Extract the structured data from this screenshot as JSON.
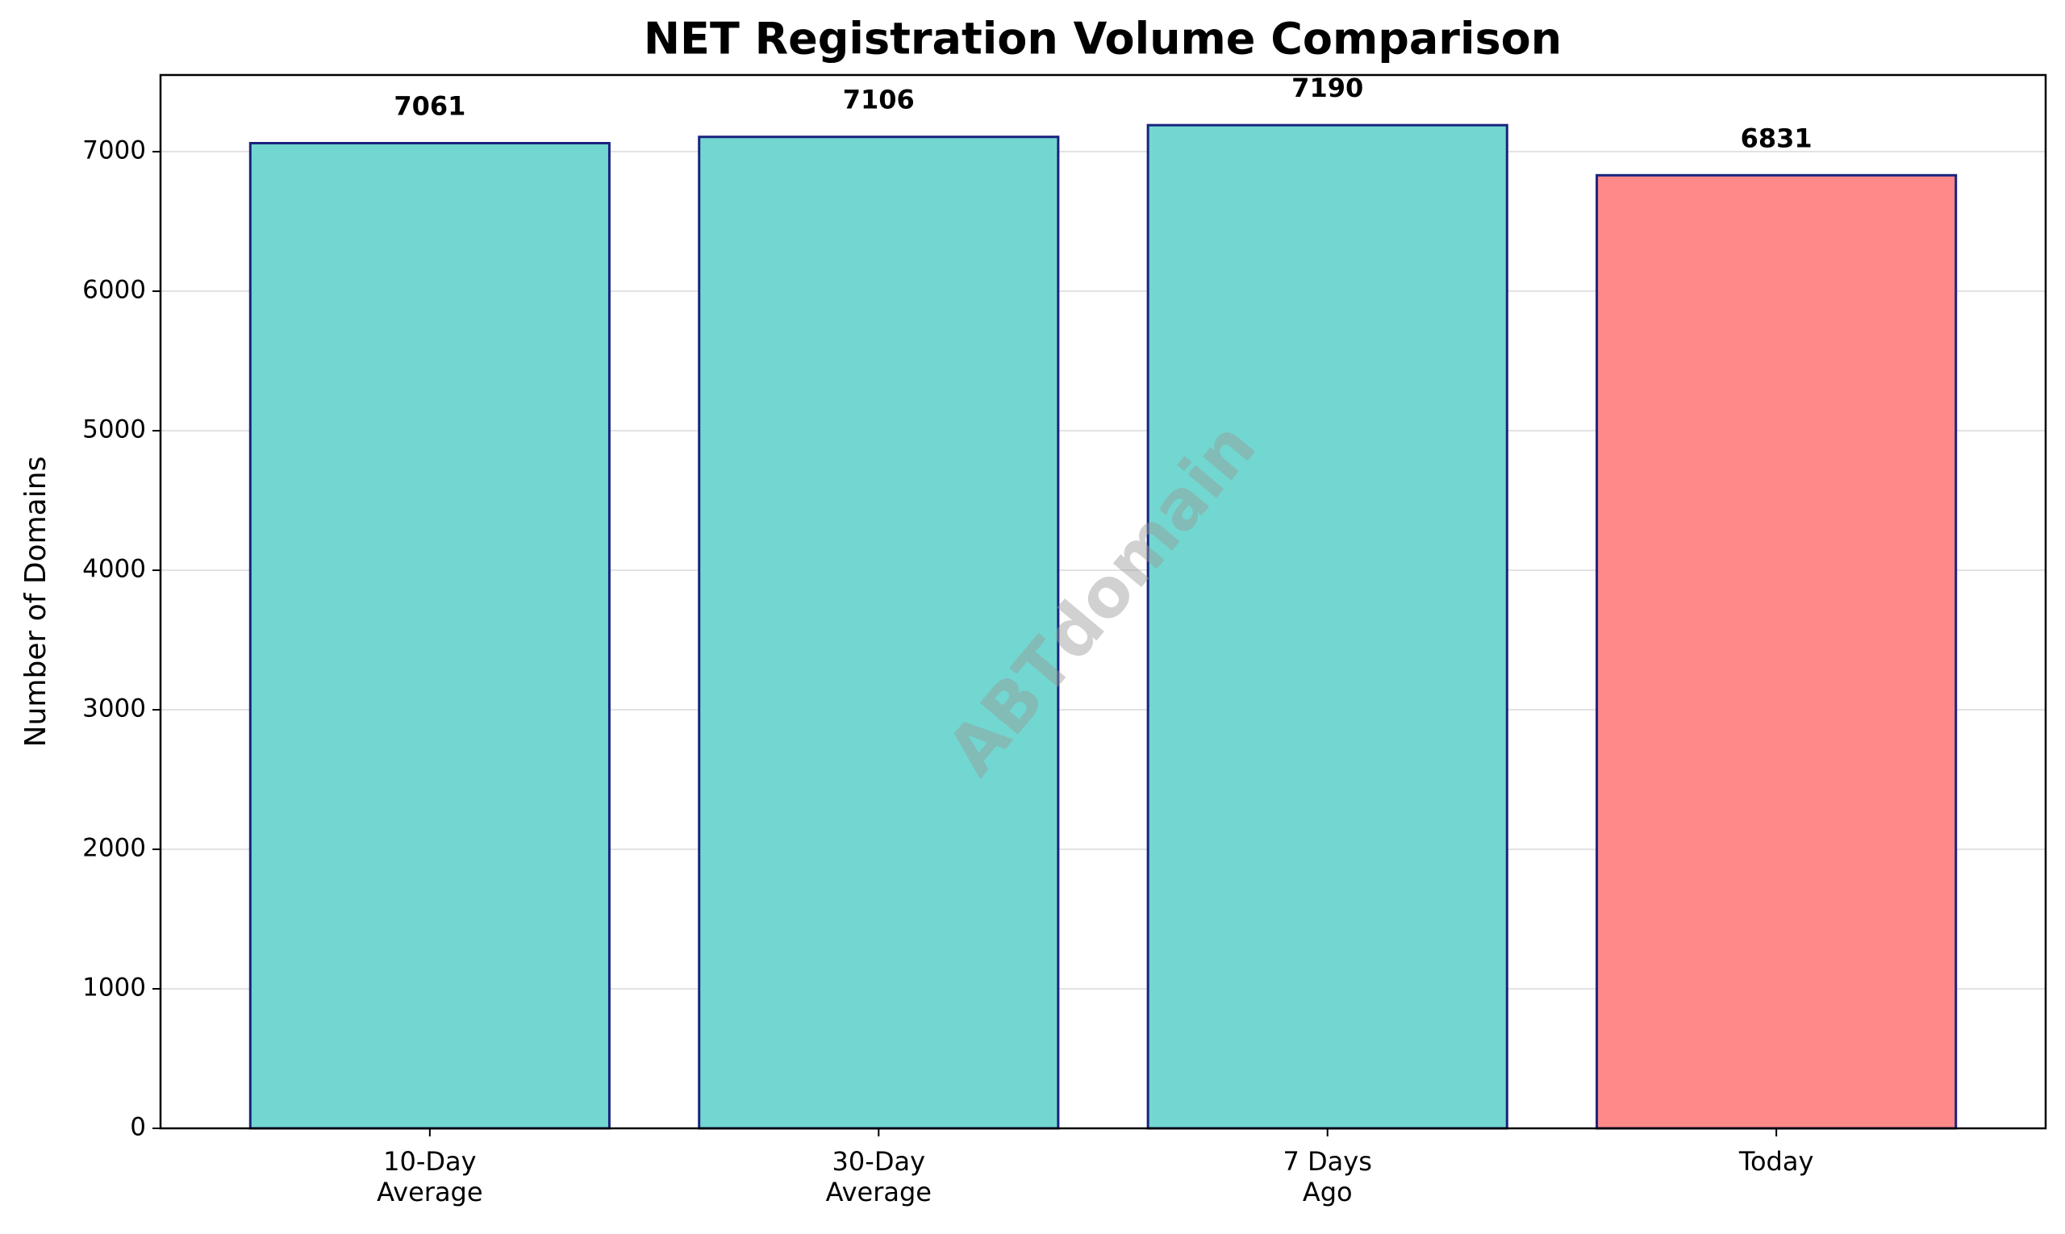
{
  "chart_data": {
    "type": "bar",
    "title": "NET Registration Volume Comparison",
    "y_label": "Number of Domains",
    "categories": [
      "10-Day\nAverage",
      "30-Day\nAverage",
      "7 Days\nAgo",
      "Today"
    ],
    "values": [
      7061,
      7106,
      7190,
      6831
    ],
    "colors": [
      "#72d7d0",
      "#72d7d0",
      "#72d7d0",
      "#ff8989"
    ],
    "edge_color": "#1a237e",
    "ylim": [
      0,
      7549.5
    ],
    "yticks": [
      0,
      1000,
      2000,
      3000,
      4000,
      5000,
      6000,
      7000
    ],
    "grid": true,
    "watermark": "ABTdomain"
  }
}
